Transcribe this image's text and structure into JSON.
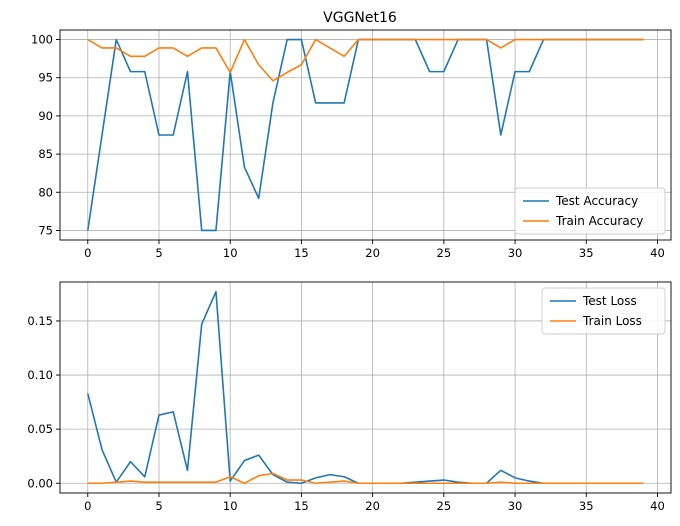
{
  "chart_data": [
    {
      "type": "line",
      "title": "VGGNet16",
      "xlabel": "",
      "ylabel": "",
      "xlim": [
        -1.95,
        40.95
      ],
      "ylim": [
        73.75,
        101.25
      ],
      "xticks": [
        0,
        5,
        10,
        15,
        20,
        25,
        30,
        35,
        40
      ],
      "yticks": [
        75,
        80,
        85,
        90,
        95,
        100
      ],
      "grid": true,
      "legend": "lower-right",
      "x": [
        0,
        1,
        2,
        3,
        4,
        5,
        6,
        7,
        8,
        9,
        10,
        11,
        12,
        13,
        14,
        15,
        16,
        17,
        18,
        19,
        20,
        21,
        22,
        23,
        24,
        25,
        26,
        27,
        28,
        29,
        30,
        31,
        32,
        33,
        34,
        35,
        36,
        37,
        38,
        39
      ],
      "series": [
        {
          "name": "Test Accuracy",
          "color": "#1f77b4",
          "values": [
            75.0,
            87.5,
            100,
            95.8,
            95.8,
            87.5,
            87.5,
            95.8,
            75.0,
            75.0,
            95.8,
            83.3,
            79.2,
            91.7,
            100,
            100,
            91.7,
            91.7,
            91.7,
            100,
            100,
            100,
            100,
            100,
            95.8,
            95.8,
            100,
            100,
            100,
            87.5,
            95.8,
            95.8,
            100,
            100,
            100,
            100,
            100,
            100,
            100,
            100
          ]
        },
        {
          "name": "Train Accuracy",
          "color": "#ff7f0e",
          "values": [
            100,
            98.9,
            98.9,
            97.8,
            97.8,
            98.9,
            98.9,
            97.8,
            98.9,
            98.9,
            95.7,
            100,
            96.7,
            94.6,
            95.7,
            96.7,
            100,
            98.9,
            97.8,
            100,
            100,
            100,
            100,
            100,
            100,
            100,
            100,
            100,
            100,
            98.9,
            100,
            100,
            100,
            100,
            100,
            100,
            100,
            100,
            100,
            100
          ]
        }
      ]
    },
    {
      "type": "line",
      "title": "",
      "xlabel": "",
      "ylabel": "",
      "xlim": [
        -1.95,
        40.95
      ],
      "ylim": [
        -0.009,
        0.186
      ],
      "xticks": [
        0,
        5,
        10,
        15,
        20,
        25,
        30,
        35,
        40
      ],
      "yticks": [
        0.0,
        0.05,
        0.1,
        0.15
      ],
      "ytick_labels": [
        "0.00",
        "0.05",
        "0.10",
        "0.15"
      ],
      "grid": true,
      "legend": "upper-right",
      "x": [
        0,
        1,
        2,
        3,
        4,
        5,
        6,
        7,
        8,
        9,
        10,
        11,
        12,
        13,
        14,
        15,
        16,
        17,
        18,
        19,
        20,
        21,
        22,
        23,
        24,
        25,
        26,
        27,
        28,
        29,
        30,
        31,
        32,
        33,
        34,
        35,
        36,
        37,
        38,
        39
      ],
      "series": [
        {
          "name": "Test Loss",
          "color": "#1f77b4",
          "values": [
            0.083,
            0.031,
            0.001,
            0.02,
            0.006,
            0.063,
            0.066,
            0.012,
            0.147,
            0.177,
            0.002,
            0.021,
            0.026,
            0.008,
            0.001,
            0.0,
            0.005,
            0.008,
            0.006,
            0.0,
            0.0,
            0.0,
            0.0,
            0.001,
            0.002,
            0.003,
            0.001,
            0.0,
            0.0,
            0.012,
            0.005,
            0.002,
            0.0,
            0.0,
            0.0,
            0.0,
            0.0,
            0.0,
            0.0,
            0.0
          ]
        },
        {
          "name": "Train Loss",
          "color": "#ff7f0e",
          "values": [
            0.0,
            0.0,
            0.001,
            0.002,
            0.001,
            0.001,
            0.001,
            0.001,
            0.001,
            0.001,
            0.006,
            0.0,
            0.007,
            0.009,
            0.003,
            0.003,
            0.0,
            0.001,
            0.002,
            0.0,
            0.0,
            0.0,
            0.0,
            0.0,
            0.0,
            0.0,
            0.0,
            0.0,
            0.0,
            0.001,
            0.0,
            0.0,
            0.0,
            0.0,
            0.0,
            0.0,
            0.0,
            0.0,
            0.0,
            0.0
          ]
        }
      ]
    }
  ]
}
